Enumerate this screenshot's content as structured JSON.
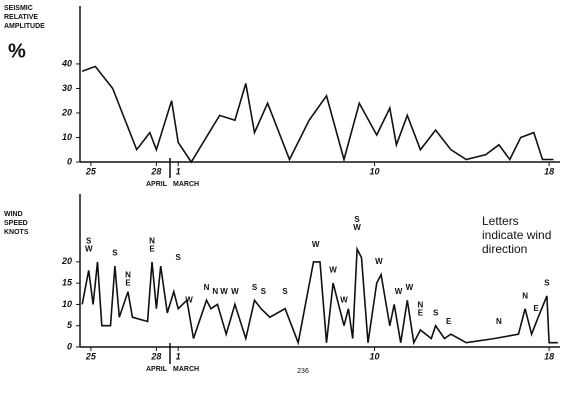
{
  "chart_data": [
    {
      "type": "line",
      "ylabel": [
        "SEISMIC",
        "RELATIVE",
        "AMPLITUDE"
      ],
      "unit": "%",
      "color": "#111111",
      "xlim": [
        -0.5,
        21.5
      ],
      "ylim": [
        0,
        62
      ],
      "yticks": [
        0,
        10,
        20,
        30,
        40
      ],
      "xticks": [
        {
          "value": 0,
          "label": "25"
        },
        {
          "value": 3,
          "label": "28"
        },
        {
          "value": 4,
          "label": "1"
        },
        {
          "value": 13,
          "label": "10"
        },
        {
          "value": 21,
          "label": "18"
        }
      ],
      "month_labels": [
        "APRIL",
        "MARCH"
      ],
      "x": [
        -0.4,
        0.2,
        1.0,
        2.1,
        2.7,
        3.0,
        3.7,
        4.0,
        4.6,
        5.9,
        6.6,
        7.1,
        7.5,
        8.1,
        9.1,
        10.0,
        10.8,
        11.6,
        12.3,
        13.1,
        13.7,
        14.0,
        14.5,
        15.1,
        15.8,
        16.5,
        17.2,
        18.1,
        18.7,
        19.2,
        19.7,
        20.3,
        20.7,
        21.2
      ],
      "values": [
        37,
        39,
        30,
        5,
        12,
        5,
        25,
        8,
        0,
        19,
        17,
        32,
        12,
        24,
        1,
        17,
        27,
        1,
        24,
        11,
        22,
        7,
        19,
        5,
        13,
        5,
        1,
        3,
        7,
        1,
        10,
        12,
        1,
        1
      ]
    },
    {
      "type": "line",
      "ylabel": [
        "WIND",
        "SPEED",
        "KNOTS"
      ],
      "color": "#111111",
      "xlim": [
        -0.5,
        21.5
      ],
      "ylim": [
        0,
        35
      ],
      "yticks": [
        0,
        5,
        10,
        15,
        20
      ],
      "xticks": [
        {
          "value": 0,
          "label": "25"
        },
        {
          "value": 3,
          "label": "28"
        },
        {
          "value": 4,
          "label": "1"
        },
        {
          "value": 13,
          "label": "10"
        },
        {
          "value": 21,
          "label": "18"
        }
      ],
      "month_labels": [
        "APRIL",
        "MARCH"
      ],
      "x": [
        -0.4,
        -0.1,
        0.1,
        0.3,
        0.5,
        0.9,
        1.1,
        1.3,
        1.7,
        1.9,
        2.6,
        2.8,
        3.0,
        3.2,
        3.5,
        3.8,
        4.0,
        4.4,
        4.7,
        5.3,
        5.5,
        5.8,
        6.2,
        6.6,
        7.1,
        7.5,
        7.8,
        8.2,
        8.9,
        9.5,
        10.2,
        10.5,
        10.8,
        11.1,
        11.6,
        11.8,
        12.0,
        12.2,
        12.4,
        12.7,
        13.1,
        13.3,
        13.7,
        13.9,
        14.2,
        14.5,
        14.8,
        15.1,
        15.6,
        15.8,
        16.2,
        16.5,
        17.2,
        18.5,
        19.6,
        19.9,
        20.2,
        20.5,
        20.9,
        21.0,
        21.4
      ],
      "values": [
        10,
        18,
        10,
        20,
        5,
        5,
        19,
        7,
        13,
        7,
        6,
        20,
        9,
        19,
        8,
        13,
        9,
        11,
        2,
        11,
        9,
        10,
        3,
        10,
        2,
        11,
        9,
        7,
        9,
        1,
        20,
        20,
        1,
        15,
        5,
        9,
        2,
        23,
        21,
        1,
        15,
        17,
        5,
        10,
        1,
        11,
        1,
        4,
        2,
        5,
        2,
        3,
        1,
        2,
        3,
        9,
        3,
        7,
        12,
        1,
        1
      ],
      "annotations": [
        {
          "x": -0.1,
          "y": 22,
          "lines": [
            "S",
            "W"
          ]
        },
        {
          "x": 1.1,
          "y": 21,
          "lines": [
            "S"
          ]
        },
        {
          "x": 1.7,
          "y": 14,
          "lines": [
            "N",
            "E"
          ]
        },
        {
          "x": 2.8,
          "y": 22,
          "lines": [
            "N",
            "E"
          ]
        },
        {
          "x": 4.0,
          "y": 20,
          "lines": [
            "S"
          ]
        },
        {
          "x": 4.5,
          "y": 10,
          "lines": [
            "W"
          ]
        },
        {
          "x": 5.3,
          "y": 13,
          "lines": [
            "N"
          ]
        },
        {
          "x": 5.7,
          "y": 12,
          "lines": [
            "N"
          ]
        },
        {
          "x": 6.1,
          "y": 12,
          "lines": [
            "W"
          ]
        },
        {
          "x": 6.6,
          "y": 12,
          "lines": [
            "W"
          ]
        },
        {
          "x": 7.5,
          "y": 13,
          "lines": [
            "S"
          ]
        },
        {
          "x": 7.9,
          "y": 12,
          "lines": [
            "S"
          ]
        },
        {
          "x": 8.9,
          "y": 12,
          "lines": [
            "S"
          ]
        },
        {
          "x": 10.3,
          "y": 23,
          "lines": [
            "W"
          ]
        },
        {
          "x": 11.1,
          "y": 17,
          "lines": [
            "W"
          ]
        },
        {
          "x": 11.6,
          "y": 10,
          "lines": [
            "W"
          ]
        },
        {
          "x": 12.2,
          "y": 27,
          "lines": [
            "S",
            "W"
          ]
        },
        {
          "x": 13.2,
          "y": 19,
          "lines": [
            "W"
          ]
        },
        {
          "x": 14.1,
          "y": 12,
          "lines": [
            "W"
          ]
        },
        {
          "x": 14.6,
          "y": 13,
          "lines": [
            "W"
          ]
        },
        {
          "x": 15.1,
          "y": 7,
          "lines": [
            "N",
            "E"
          ]
        },
        {
          "x": 15.8,
          "y": 7,
          "lines": [
            "S"
          ]
        },
        {
          "x": 16.4,
          "y": 5,
          "lines": [
            "E"
          ]
        },
        {
          "x": 18.7,
          "y": 5,
          "lines": [
            "N"
          ]
        },
        {
          "x": 19.9,
          "y": 11,
          "lines": [
            "N"
          ]
        },
        {
          "x": 20.4,
          "y": 8,
          "lines": [
            "E"
          ]
        },
        {
          "x": 20.9,
          "y": 14,
          "lines": [
            "S"
          ]
        }
      ]
    }
  ],
  "note": [
    "Letters",
    "indicate wind",
    "direction"
  ],
  "page_number": "236"
}
